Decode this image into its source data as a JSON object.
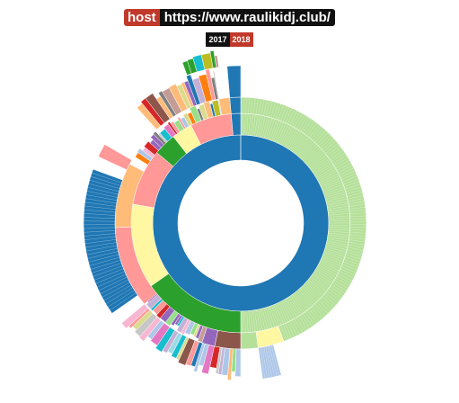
{
  "header": {
    "badge": "host",
    "url": "https://www.raulikidj.club/"
  },
  "years": [
    {
      "label": "2017",
      "color": "#111111"
    },
    {
      "label": "2018",
      "color": "#c0392b"
    }
  ],
  "palette": [
    "#1f77b4",
    "#aec7e8",
    "#ff7f0e",
    "#ffbb78",
    "#2ca02c",
    "#98df8a",
    "#d62728",
    "#ff9896",
    "#9467bd",
    "#c5b0d5",
    "#8c564b",
    "#c49c94",
    "#e377c2",
    "#f7b6d2",
    "#7f7f7f",
    "#c7c7c7",
    "#bcbd22",
    "#dbdb8d",
    "#17becf",
    "#9edae5"
  ],
  "rings": {
    "ring1": [
      {
        "start": 0,
        "end": 360,
        "color": "#1f77b4"
      }
    ],
    "ring2": [
      {
        "start": 0,
        "end": 180,
        "color": "#b5e09a",
        "lines": 140
      },
      {
        "start": 180,
        "end": 235,
        "color": "#2ca02c"
      },
      {
        "start": 235,
        "end": 280,
        "color": "#fff7a1"
      },
      {
        "start": 280,
        "end": 310,
        "color": "#ff9896"
      },
      {
        "start": 310,
        "end": 322,
        "color": "#2ca02c"
      },
      {
        "start": 322,
        "end": 333,
        "color": "#fff7a1"
      },
      {
        "start": 333,
        "end": 355,
        "color": "#ff9896"
      },
      {
        "start": 355,
        "end": 360,
        "color": "#1f77b4"
      }
    ],
    "ring3": [
      {
        "start": 0,
        "end": 160,
        "color": "#b5e09a",
        "lines": 120
      },
      {
        "start": 160,
        "end": 172,
        "color": "#fff7a1"
      },
      {
        "start": 172,
        "end": 180,
        "color": "#b5e09a"
      },
      {
        "start": 180,
        "end": 192,
        "color": "#8c564b"
      },
      {
        "start": 192,
        "end": 198,
        "color": "#9467bd"
      },
      {
        "start": 198,
        "end": 230,
        "multi": true
      },
      {
        "start": 230,
        "end": 268,
        "color": "#ff9896"
      },
      {
        "start": 268,
        "end": 298,
        "color": "#ffbb78"
      },
      {
        "start": 298,
        "end": 302,
        "color": "#ffffff"
      },
      {
        "start": 302,
        "end": 318,
        "multi": true
      },
      {
        "start": 318,
        "end": 350,
        "multi": true
      },
      {
        "start": 350,
        "end": 355,
        "color": "#ffbb78"
      },
      {
        "start": 355,
        "end": 360,
        "color": "#1f77b4"
      }
    ],
    "ring4": [
      {
        "start": 165,
        "end": 172,
        "color": "#aec7e8",
        "lines": 8
      },
      {
        "start": 180,
        "end": 230,
        "multi": true
      },
      {
        "start": 235,
        "end": 290,
        "color": "#1f77b4",
        "lines": 40
      },
      {
        "start": 295,
        "end": 300,
        "color": "#ff9896"
      },
      {
        "start": 318,
        "end": 350,
        "multi": true
      },
      {
        "start": 355,
        "end": 360,
        "color": "#1f77b4"
      }
    ],
    "ring5": [
      {
        "start": 340,
        "end": 352,
        "multi": true
      }
    ]
  }
}
